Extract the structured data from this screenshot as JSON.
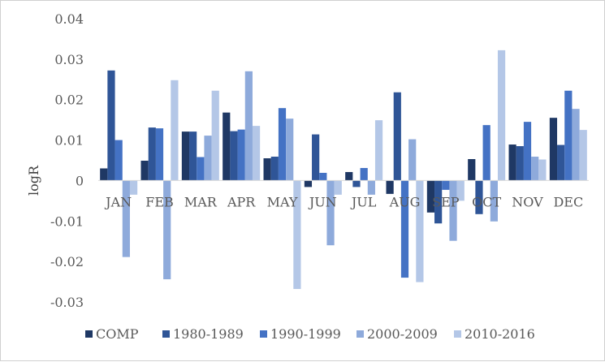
{
  "chart_data": {
    "type": "bar",
    "title": "",
    "xlabel": "",
    "ylabel": "logR",
    "ylim": [
      -0.03,
      0.04
    ],
    "yticks": [
      -0.03,
      -0.02,
      -0.01,
      0,
      0.01,
      0.02,
      0.03,
      0.04
    ],
    "ytick_labels": [
      "-0.03",
      "-0.02",
      "-0.01",
      "0",
      "0.01",
      "0.02",
      "0.03",
      "0.04"
    ],
    "grid": false,
    "legend_position": "bottom",
    "categories": [
      "JAN",
      "FEB",
      "MAR",
      "APR",
      "MAY",
      "JUN",
      "JUL",
      "AUG",
      "SEP",
      "OCT",
      "NOV",
      "DEC"
    ],
    "series": [
      {
        "name": "COMP",
        "color": "#1f3864",
        "values": [
          0.003,
          0.0049,
          0.0121,
          0.0168,
          0.0055,
          -0.0016,
          0.0021,
          -0.0033,
          -0.0079,
          0.0053,
          0.0089,
          0.0155
        ]
      },
      {
        "name": "1980-1989",
        "color": "#2f5597",
        "values": [
          0.0272,
          0.0131,
          0.0121,
          0.0122,
          0.0059,
          0.0114,
          -0.0016,
          0.0218,
          -0.0106,
          -0.0083,
          0.0085,
          0.0088
        ]
      },
      {
        "name": "1990-1999",
        "color": "#4472c4",
        "values": [
          0.01,
          0.0129,
          0.0058,
          0.0126,
          0.0179,
          0.0019,
          0.0031,
          -0.024,
          -0.0023,
          0.0137,
          0.0145,
          0.0222
        ]
      },
      {
        "name": "2000-2009",
        "color": "#8eaadb",
        "values": [
          -0.0189,
          -0.0244,
          0.0111,
          0.027,
          0.0153,
          -0.016,
          -0.0035,
          0.0102,
          -0.0149,
          -0.0101,
          0.0059,
          0.0177
        ]
      },
      {
        "name": "2010-2016",
        "color": "#b4c7e7",
        "values": [
          -0.0035,
          0.0248,
          0.0222,
          0.0135,
          -0.0268,
          -0.0035,
          0.0149,
          -0.0251,
          -0.005,
          0.0322,
          0.0052,
          0.0125
        ]
      }
    ]
  }
}
